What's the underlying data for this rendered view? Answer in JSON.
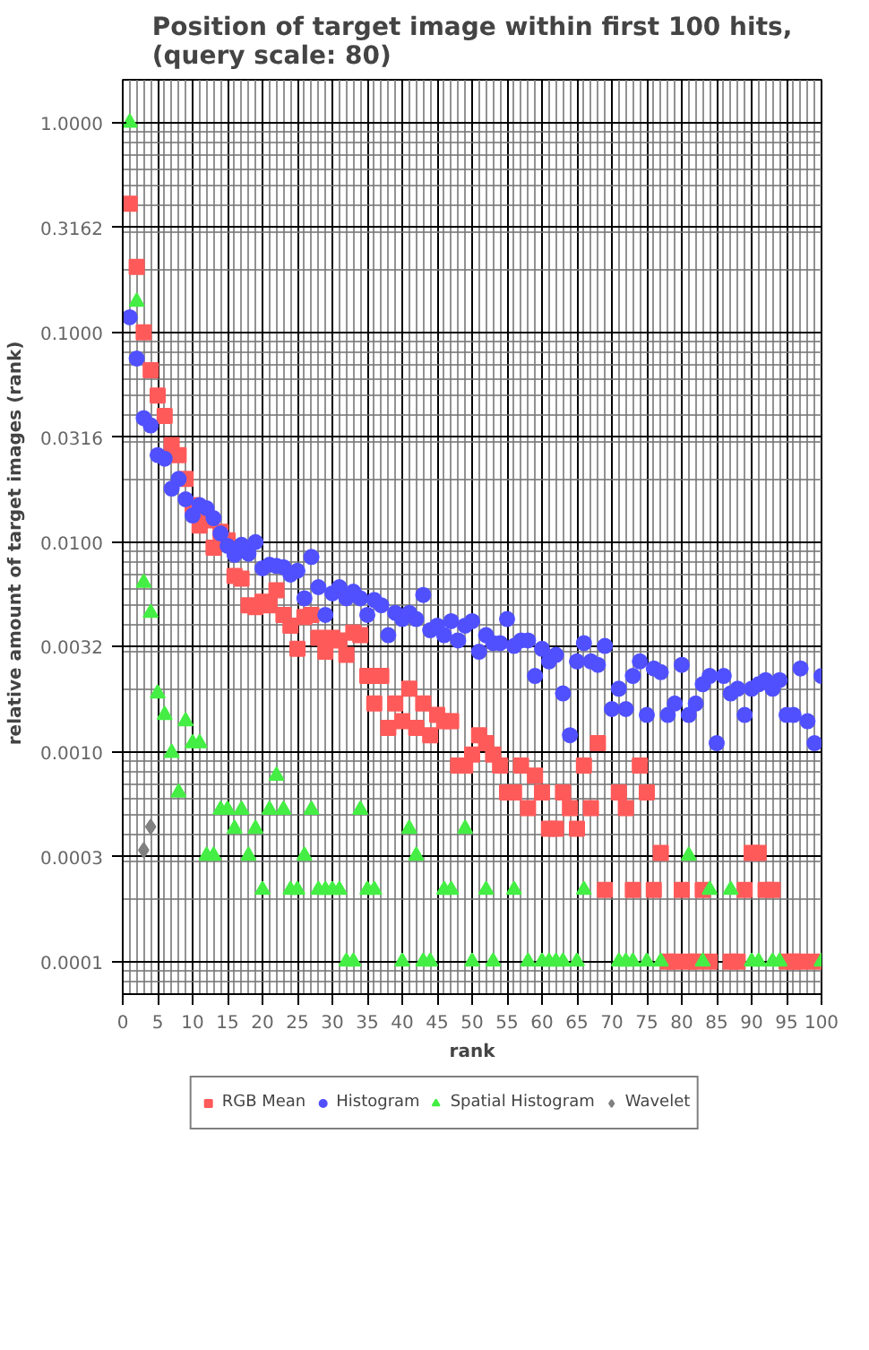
{
  "chart_data": {
    "type": "scatter",
    "title": "Position of target image within first 100 hits, (query scale: 80)",
    "xlabel": "rank",
    "ylabel": "relative  amount of  target images (rank)",
    "x": [
      1,
      2,
      3,
      4,
      5,
      6,
      7,
      8,
      9,
      10,
      11,
      12,
      13,
      14,
      15,
      16,
      17,
      18,
      19,
      20,
      21,
      22,
      23,
      24,
      25,
      26,
      27,
      28,
      29,
      30,
      31,
      32,
      33,
      34,
      35,
      36,
      37,
      38,
      39,
      40,
      41,
      42,
      43,
      44,
      45,
      46,
      47,
      48,
      49,
      50,
      51,
      52,
      53,
      54,
      55,
      56,
      57,
      58,
      59,
      60,
      61,
      62,
      63,
      64,
      65,
      66,
      67,
      68,
      69,
      70,
      71,
      72,
      73,
      74,
      75,
      76,
      77,
      78,
      79,
      80,
      81,
      82,
      83,
      84,
      85,
      86,
      87,
      88,
      89,
      90,
      91,
      92,
      93,
      94,
      95,
      96,
      97,
      98,
      99,
      100
    ],
    "series": [
      {
        "name": "RGB Mean",
        "color": "#ff5a5a",
        "marker": "square",
        "values": [
          0.41,
          0.205,
          0.1,
          0.066,
          0.05,
          0.04,
          0.029,
          0.026,
          0.02,
          0.015,
          0.012,
          0.0127,
          0.0094,
          0.0112,
          0.0102,
          0.0069,
          0.0067,
          0.005,
          0.0049,
          0.0052,
          0.005,
          0.0059,
          0.0045,
          0.004,
          0.0031,
          0.0044,
          0.0045,
          0.0035,
          0.003,
          0.0035,
          0.0034,
          0.0029,
          0.0037,
          0.0036,
          0.0023,
          0.0017,
          0.0023,
          0.0013,
          0.0017,
          0.0014,
          0.002,
          0.0013,
          0.0017,
          0.0012,
          0.0015,
          0.0014,
          0.0014,
          0.00086,
          0.00086,
          0.00097,
          0.0012,
          0.0011,
          0.00097,
          0.00086,
          0.00064,
          0.00064,
          0.00086,
          0.00054,
          0.00077,
          0.00064,
          0.00043,
          0.00043,
          0.00064,
          0.00054,
          0.00043,
          0.00086,
          0.00054,
          0.0011,
          0.00022,
          null,
          0.00064,
          0.00054,
          0.00022,
          0.00086,
          0.00064,
          0.00022,
          0.00033,
          0.0001,
          0.0001,
          0.00022,
          0.0001,
          0.0001,
          0.00022,
          0.0001,
          null,
          null,
          0.0001,
          0.0001,
          0.00022,
          0.00033,
          0.00033,
          0.00022,
          0.00022,
          null,
          0.0001,
          0.0001,
          0.0001,
          null,
          0.0001,
          null
        ]
      },
      {
        "name": "Histogram",
        "color": "#5050ff",
        "marker": "circle",
        "values": [
          0.118,
          0.075,
          0.039,
          0.036,
          0.026,
          0.025,
          0.018,
          0.02,
          0.016,
          0.0134,
          0.015,
          0.0145,
          0.013,
          0.011,
          0.0096,
          0.0087,
          0.0097,
          0.0088,
          0.01,
          0.0075,
          0.0078,
          0.0077,
          0.0076,
          0.007,
          0.0073,
          0.0054,
          0.0085,
          0.0061,
          0.0045,
          0.0057,
          0.0061,
          0.0054,
          0.0058,
          0.0054,
          0.0045,
          0.0053,
          0.005,
          0.0036,
          0.0046,
          0.0043,
          0.0046,
          0.0043,
          0.0056,
          0.0038,
          0.004,
          0.0036,
          0.0042,
          0.0034,
          0.004,
          0.0042,
          0.003,
          0.0036,
          0.0033,
          0.0033,
          0.0043,
          0.0032,
          0.0034,
          0.0034,
          0.0023,
          0.0031,
          0.0027,
          0.0029,
          0.0019,
          0.0012,
          0.0027,
          0.0033,
          0.0027,
          0.0026,
          0.0032,
          0.0016,
          0.002,
          0.0016,
          0.0023,
          0.0027,
          0.0015,
          0.0025,
          0.0024,
          0.0015,
          0.0017,
          0.0026,
          0.0015,
          0.0017,
          0.0021,
          0.0023,
          0.0011,
          0.0023,
          0.0019,
          0.002,
          0.0015,
          0.002,
          0.0021,
          0.0022,
          0.002,
          0.0022,
          0.0015,
          0.0015,
          0.0025,
          0.0014,
          0.0011,
          0.0023
        ]
      },
      {
        "name": "Spatial Histogram",
        "color": "#44ee44",
        "marker": "triangle",
        "values": [
          1.0,
          0.14,
          0.0064,
          0.0046,
          0.0019,
          0.0015,
          0.00099,
          0.00064,
          0.0014,
          0.0011,
          0.0011,
          0.00032,
          0.00032,
          0.00053,
          0.00053,
          0.00043,
          0.00053,
          0.00032,
          0.00043,
          0.00022,
          0.00053,
          0.00077,
          0.00053,
          0.00022,
          0.00022,
          0.00032,
          0.00053,
          0.00022,
          0.00022,
          0.00022,
          0.00022,
          0.0001,
          0.0001,
          0.00053,
          0.00022,
          0.00022,
          null,
          null,
          null,
          0.0001,
          0.00043,
          0.00032,
          0.0001,
          0.0001,
          null,
          0.00022,
          0.00022,
          null,
          0.00043,
          0.0001,
          null,
          0.00022,
          0.0001,
          null,
          null,
          0.00022,
          null,
          0.0001,
          null,
          0.0001,
          0.0001,
          0.0001,
          0.0001,
          null,
          0.0001,
          0.00022,
          null,
          null,
          null,
          null,
          0.0001,
          0.0001,
          0.0001,
          null,
          0.0001,
          null,
          0.0001,
          null,
          null,
          null,
          0.00032,
          null,
          0.0001,
          0.00022,
          null,
          null,
          0.00022,
          null,
          null,
          0.0001,
          0.0001,
          null,
          0.0001,
          0.0001,
          null,
          null,
          null,
          null,
          null,
          0.0001
        ]
      },
      {
        "name": "Wavelet",
        "color": "#808080",
        "marker": "diamond",
        "x": [
          3,
          4
        ],
        "values": [
          0.00034,
          0.00044
        ]
      }
    ],
    "log": "y",
    "grid": true,
    "legend": "bottom",
    "xlim": [
      0,
      100
    ],
    "xticks": [
      0,
      5,
      10,
      15,
      20,
      25,
      30,
      35,
      40,
      45,
      50,
      55,
      60,
      65,
      70,
      75,
      80,
      85,
      90,
      95,
      100
    ],
    "ylim": [
      7e-05,
      1.6
    ],
    "yticks": [
      {
        "value": 1.0,
        "label": "1.0000"
      },
      {
        "value": 0.3162,
        "label": "0.3162"
      },
      {
        "value": 0.1,
        "label": "0.1000"
      },
      {
        "value": 0.0316,
        "label": "0.0316"
      },
      {
        "value": 0.01,
        "label": "0.0100"
      },
      {
        "value": 0.0032,
        "label": "0.0032"
      },
      {
        "value": 0.001,
        "label": "0.0010"
      },
      {
        "value": 0.000316,
        "label": "0.0003"
      },
      {
        "value": 0.0001,
        "label": "0.0001"
      }
    ]
  }
}
